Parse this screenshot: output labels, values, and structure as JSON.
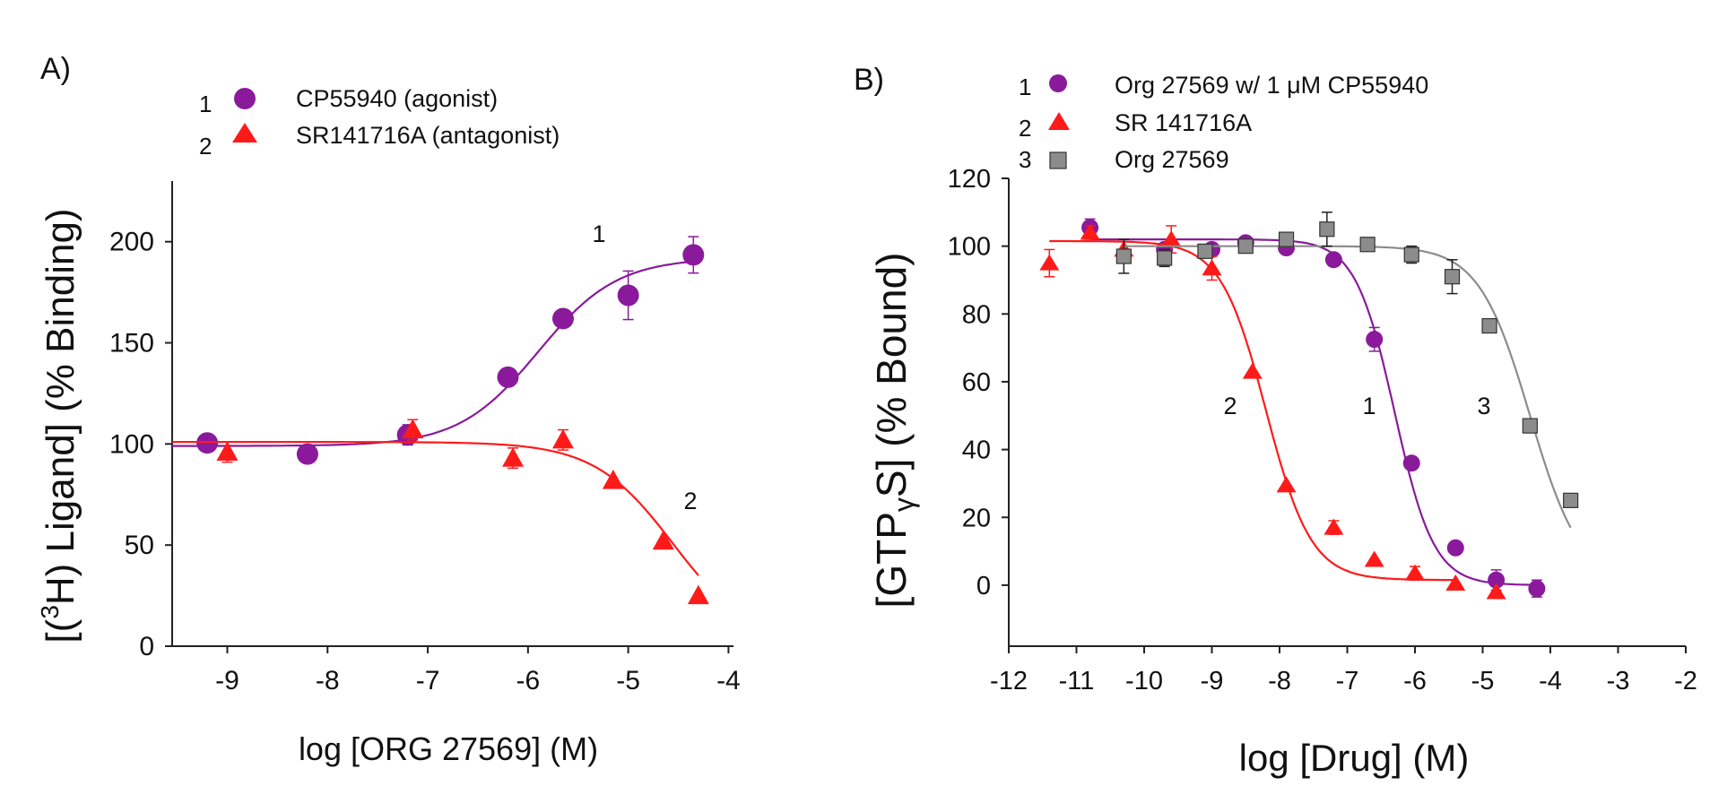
{
  "chart_data": [
    {
      "type": "scatter",
      "panel_label": "A)",
      "title": "",
      "xlabel": "log [ORG 27569] (M)",
      "ylabel_parts": [
        "[(",
        "3",
        "H) Ligand] (% Binding)"
      ],
      "xlim": [
        -9.55,
        -3.95
      ],
      "ylim": [
        0,
        230
      ],
      "xticks": [
        -9,
        -8,
        -7,
        -6,
        -5,
        -4
      ],
      "yticks": [
        0,
        50,
        100,
        150,
        200
      ],
      "grid": false,
      "legend_position": "top",
      "series": [
        {
          "name": "CP55940 (agonist)",
          "legend_number": "1",
          "curve_label": "1",
          "marker": "circle",
          "color": "#8a1a9b",
          "points": [
            {
              "x": -9.2,
              "y": 100.5,
              "err": 0
            },
            {
              "x": -8.2,
              "y": 95,
              "err": 0
            },
            {
              "x": -7.2,
              "y": 104.5,
              "err": 5
            },
            {
              "x": -6.2,
              "y": 133,
              "err": 0
            },
            {
              "x": -5.65,
              "y": 162,
              "err": 0
            },
            {
              "x": -5.0,
              "y": 173.5,
              "err": 12
            },
            {
              "x": -4.35,
              "y": 193.5,
              "err": 9
            }
          ],
          "fit": {
            "bottom": 99,
            "top": 192,
            "logEC50": -5.9,
            "hill": 1.1,
            "x_range": [
              -9.55,
              -4.35
            ]
          }
        },
        {
          "name": "SR141716A (antagonist)",
          "legend_number": "2",
          "curve_label": "2",
          "marker": "triangle",
          "color": "#ff1a1a",
          "points": [
            {
              "x": -9.0,
              "y": 96,
              "err": 5
            },
            {
              "x": -7.15,
              "y": 107,
              "err": 5
            },
            {
              "x": -6.15,
              "y": 93,
              "err": 5
            },
            {
              "x": -5.65,
              "y": 102,
              "err": 5
            },
            {
              "x": -5.15,
              "y": 82,
              "err": 0
            },
            {
              "x": -4.65,
              "y": 52,
              "err": 0
            },
            {
              "x": -4.3,
              "y": 25,
              "err": 0
            }
          ],
          "fit": {
            "bottom": 0,
            "top": 101,
            "logEC50": -4.55,
            "hill": 1.1,
            "x_range": [
              -9.55,
              -4.3
            ]
          }
        }
      ]
    },
    {
      "type": "scatter",
      "panel_label": "B)",
      "title": "",
      "xlabel": "log [Drug] (M)",
      "ylabel_parts": [
        "[GTP",
        "γ",
        "S] (% Bound)"
      ],
      "xlim": [
        -12,
        -2
      ],
      "ylim": [
        -18,
        120
      ],
      "xticks": [
        -12,
        -11,
        -10,
        -9,
        -8,
        -7,
        -6,
        -5,
        -4,
        -3,
        -2
      ],
      "yticks": [
        0,
        20,
        40,
        60,
        80,
        100,
        120
      ],
      "grid": false,
      "legend_position": "top-left",
      "series": [
        {
          "name": "Org 27569 w/ 1 μM CP55940",
          "legend_number": "1",
          "curve_label": "1",
          "marker": "circle",
          "color": "#8a1a9b",
          "points": [
            {
              "x": -10.8,
              "y": 105.5,
              "err": 2.5
            },
            {
              "x": -9.7,
              "y": 99,
              "err": 0
            },
            {
              "x": -9.0,
              "y": 99,
              "err": 0
            },
            {
              "x": -8.5,
              "y": 101,
              "err": 0
            },
            {
              "x": -7.9,
              "y": 99.5,
              "err": 0
            },
            {
              "x": -7.2,
              "y": 96,
              "err": 0
            },
            {
              "x": -6.6,
              "y": 72.5,
              "err": 3.5
            },
            {
              "x": -6.05,
              "y": 36,
              "err": 0
            },
            {
              "x": -5.4,
              "y": 11,
              "err": 0
            },
            {
              "x": -4.8,
              "y": 1.5,
              "err": 3
            },
            {
              "x": -4.2,
              "y": -1,
              "err": 2.5
            }
          ],
          "fit": {
            "bottom": 0,
            "top": 102,
            "logEC50": -6.3,
            "hill": 1.5,
            "x_range": [
              -10.8,
              -4.2
            ]
          }
        },
        {
          "name": "SR 141716A",
          "legend_number": "2",
          "curve_label": "2",
          "marker": "triangle",
          "color": "#ff1a1a",
          "points": [
            {
              "x": -11.4,
              "y": 95,
              "err": 4
            },
            {
              "x": -10.8,
              "y": 104,
              "err": 2
            },
            {
              "x": -10.3,
              "y": 99,
              "err": 0
            },
            {
              "x": -9.6,
              "y": 102,
              "err": 4
            },
            {
              "x": -9.0,
              "y": 93.5,
              "err": 3.5
            },
            {
              "x": -8.4,
              "y": 63,
              "err": 0
            },
            {
              "x": -7.9,
              "y": 29.5,
              "err": 0
            },
            {
              "x": -7.2,
              "y": 17,
              "err": 2
            },
            {
              "x": -6.6,
              "y": 7.5,
              "err": 0
            },
            {
              "x": -6.0,
              "y": 3.5,
              "err": 2
            },
            {
              "x": -5.4,
              "y": 0.5,
              "err": 0
            },
            {
              "x": -4.8,
              "y": -2,
              "err": 0
            }
          ],
          "fit": {
            "bottom": 1.5,
            "top": 101.5,
            "logEC50": -8.2,
            "hill": 1.3,
            "x_range": [
              -11.4,
              -5.4
            ]
          }
        },
        {
          "name": "Org 27569",
          "legend_number": "3",
          "curve_label": "3",
          "marker": "square",
          "color": "#8c8c8c",
          "points": [
            {
              "x": -10.3,
              "y": 97,
              "err": 5
            },
            {
              "x": -9.7,
              "y": 96.5,
              "err": 2.5
            },
            {
              "x": -9.1,
              "y": 98.5,
              "err": 0
            },
            {
              "x": -8.5,
              "y": 100,
              "err": 0
            },
            {
              "x": -7.9,
              "y": 102,
              "err": 0
            },
            {
              "x": -7.3,
              "y": 105,
              "err": 5
            },
            {
              "x": -6.7,
              "y": 100.5,
              "err": 0
            },
            {
              "x": -6.05,
              "y": 97.5,
              "err": 2.5
            },
            {
              "x": -5.45,
              "y": 91,
              "err": 5
            },
            {
              "x": -4.9,
              "y": 76.5,
              "err": 0
            },
            {
              "x": -4.3,
              "y": 47,
              "err": 0
            },
            {
              "x": -3.7,
              "y": 25,
              "err": 2
            }
          ],
          "fit": {
            "bottom": 0,
            "top": 100,
            "logEC50": -4.3,
            "hill": 1.15,
            "x_range": [
              -10.3,
              -3.7
            ]
          }
        }
      ]
    }
  ]
}
